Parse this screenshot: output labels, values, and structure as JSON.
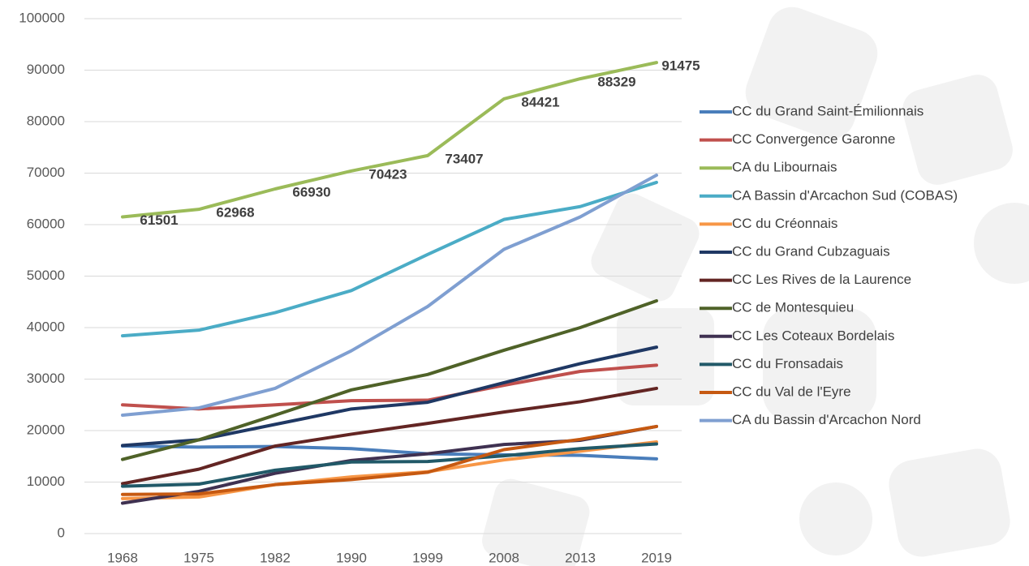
{
  "chart_data": {
    "type": "line",
    "categories": [
      "1968",
      "1975",
      "1982",
      "1990",
      "1999",
      "2008",
      "2013",
      "2019"
    ],
    "ylim": [
      0,
      100000
    ],
    "yticks": [
      0,
      10000,
      20000,
      30000,
      40000,
      50000,
      60000,
      70000,
      80000,
      90000,
      100000
    ],
    "grid": true,
    "legend": "right",
    "series": [
      {
        "name": "CC du Grand Saint-Émilionnais",
        "color": "#4a7ebb",
        "values": [
          17000,
          16800,
          16900,
          16500,
          15500,
          15300,
          15200,
          14500
        ]
      },
      {
        "name": "CC Convergence Garonne",
        "color": "#c0504d",
        "values": [
          25000,
          24200,
          25000,
          25800,
          25900,
          28800,
          31500,
          32700
        ]
      },
      {
        "name": "CA du Libournais",
        "color": "#9bbb59",
        "values": [
          61501,
          62968,
          66930,
          70423,
          73407,
          84421,
          88329,
          91475
        ],
        "data_labels": true
      },
      {
        "name": "CA Bassin d'Arcachon Sud (COBAS)",
        "color": "#4bacc6",
        "values": [
          38400,
          39500,
          42900,
          47200,
          54200,
          61000,
          63500,
          68200
        ]
      },
      {
        "name": "CC du Créonnais",
        "color": "#f79646",
        "values": [
          6800,
          7100,
          9500,
          11000,
          12000,
          14300,
          16000,
          17800
        ]
      },
      {
        "name": "CC du Grand Cubzaguais",
        "color": "#1f3864",
        "values": [
          17100,
          18200,
          21200,
          24200,
          25500,
          29300,
          33000,
          36200
        ]
      },
      {
        "name": "CC Les Rives de la Laurence",
        "color": "#632523",
        "values": [
          9700,
          12500,
          17000,
          19300,
          21400,
          23600,
          25600,
          28200
        ]
      },
      {
        "name": "CC de Montesquieu",
        "color": "#4f6228",
        "values": [
          14400,
          18200,
          23000,
          27900,
          30900,
          35600,
          40000,
          45200
        ]
      },
      {
        "name": "CC Les Coteaux Bordelais",
        "color": "#3f3151",
        "values": [
          5900,
          8200,
          11700,
          14200,
          15500,
          17300,
          18100,
          20800
        ]
      },
      {
        "name": "CC du Fronsadais",
        "color": "#215968",
        "values": [
          9200,
          9600,
          12300,
          13900,
          14000,
          15100,
          16500,
          17400
        ]
      },
      {
        "name": "CC du Val de l'Eyre",
        "color": "#c65911",
        "values": [
          7600,
          7700,
          9500,
          10500,
          11900,
          16300,
          18300,
          20800
        ]
      },
      {
        "name": "CA du Bassin d'Arcachon Nord",
        "color": "#7f9fd1",
        "values": [
          23000,
          24400,
          28200,
          35500,
          44100,
          55200,
          61500,
          69600
        ]
      }
    ]
  }
}
